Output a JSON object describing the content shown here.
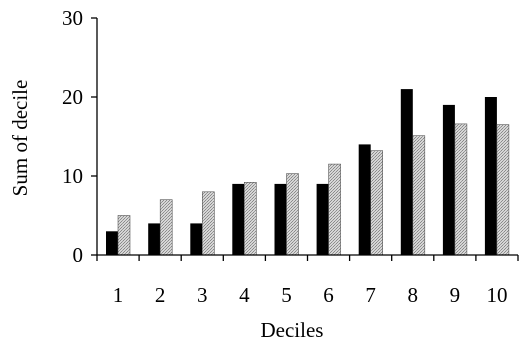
{
  "chart_data": {
    "type": "bar",
    "title": "",
    "xlabel": "Deciles",
    "ylabel": "Sum of decile",
    "categories": [
      "1",
      "2",
      "3",
      "4",
      "5",
      "6",
      "7",
      "8",
      "9",
      "10"
    ],
    "series": [
      {
        "values": [
          3,
          4,
          4,
          9,
          9,
          9,
          14,
          21,
          19,
          20
        ],
        "color": "#000000",
        "pattern": "solid"
      },
      {
        "values": [
          5,
          7,
          8,
          9.2,
          10.3,
          11.5,
          13.2,
          15.1,
          16.6,
          16.5
        ],
        "color": "#c8c8c8",
        "pattern": "hatched"
      }
    ],
    "yticks": [
      "0",
      "10",
      "20",
      "30"
    ],
    "ylim": [
      0,
      30
    ],
    "grid": false,
    "legend": "none"
  }
}
